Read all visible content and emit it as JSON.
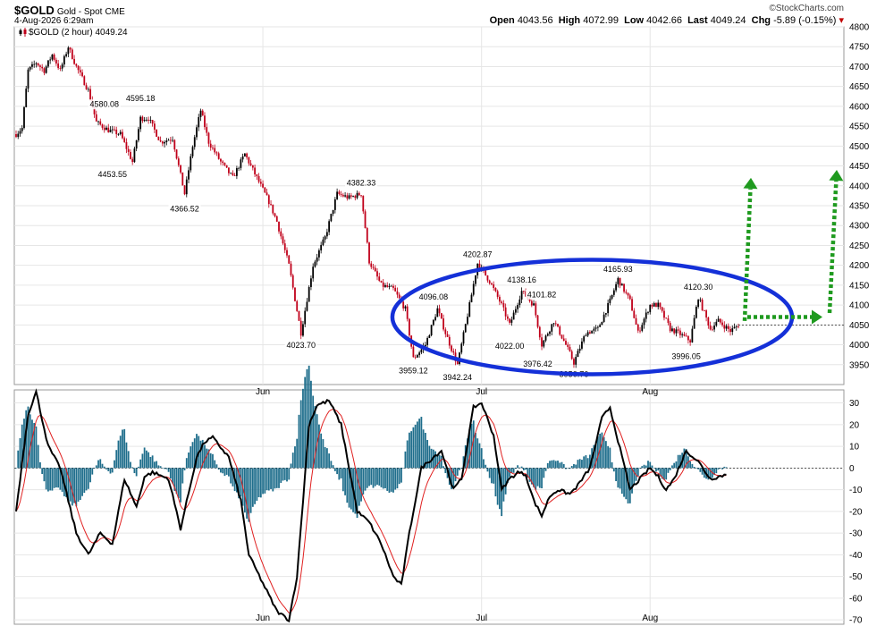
{
  "header": {
    "symbol": "$GOLD",
    "name": "Gold - Spot",
    "exchange": "CME",
    "timestamp": "4-Aug-2026 6:29am",
    "watermark": "©StockCharts.com",
    "open_label": "Open",
    "open": "4043.56",
    "high_label": "High",
    "high": "4072.99",
    "low_label": "Low",
    "low": "4042.66",
    "last_label": "Last",
    "last": "4049.24",
    "chg_label": "Chg",
    "chg": "-5.89 (-0.15%)"
  },
  "legend": {
    "price": "$GOLD (2 hour) 4049.24"
  },
  "colors": {
    "up": "#000000",
    "down": "#c0001a",
    "ellipse": "#1430d8",
    "arrow": "#1f9a1f",
    "histogram": "#1f6e8c",
    "signal": "#e02020",
    "grid": "#e6e6e6"
  },
  "chart_data": [
    {
      "type": "candlestick",
      "interval": "2 hour",
      "ylim": [
        3900,
        4800
      ],
      "yticks": [
        3950,
        4000,
        4050,
        4100,
        4150,
        4200,
        4250,
        4300,
        4350,
        4400,
        4450,
        4500,
        4550,
        4600,
        4650,
        4700,
        4750,
        4800
      ],
      "xticks": [
        "Jun",
        "Jul",
        "Aug"
      ],
      "last_price": 4049.24,
      "anchors": [
        [
          0,
          4530
        ],
        [
          3,
          4545
        ],
        [
          6,
          4690
        ],
        [
          10,
          4710
        ],
        [
          14,
          4690
        ],
        [
          18,
          4730
        ],
        [
          22,
          4690
        ],
        [
          26,
          4750
        ],
        [
          30,
          4700
        ],
        [
          36,
          4640
        ],
        [
          40,
          4560
        ],
        [
          46,
          4540
        ],
        [
          52,
          4530
        ],
        [
          58,
          4460
        ],
        [
          62,
          4570
        ],
        [
          66,
          4570
        ],
        [
          72,
          4510
        ],
        [
          78,
          4520
        ],
        [
          84,
          4380
        ],
        [
          88,
          4500
        ],
        [
          92,
          4590
        ],
        [
          96,
          4510
        ],
        [
          102,
          4460
        ],
        [
          108,
          4420
        ],
        [
          114,
          4480
        ],
        [
          120,
          4420
        ],
        [
          126,
          4360
        ],
        [
          130,
          4310
        ],
        [
          136,
          4200
        ],
        [
          142,
          4030
        ],
        [
          148,
          4200
        ],
        [
          154,
          4270
        ],
        [
          160,
          4380
        ],
        [
          166,
          4370
        ],
        [
          172,
          4380
        ],
        [
          176,
          4210
        ],
        [
          182,
          4150
        ],
        [
          188,
          4140
        ],
        [
          194,
          4090
        ],
        [
          198,
          3965
        ],
        [
          204,
          4000
        ],
        [
          210,
          4090
        ],
        [
          214,
          4030
        ],
        [
          220,
          3950
        ],
        [
          226,
          4100
        ],
        [
          230,
          4205
        ],
        [
          236,
          4160
        ],
        [
          242,
          4100
        ],
        [
          246,
          4050
        ],
        [
          252,
          4135
        ],
        [
          258,
          4100
        ],
        [
          262,
          4000
        ],
        [
          268,
          4060
        ],
        [
          274,
          4000
        ],
        [
          278,
          3955
        ],
        [
          284,
          4030
        ],
        [
          290,
          4040
        ],
        [
          296,
          4110
        ],
        [
          300,
          4165
        ],
        [
          306,
          4110
        ],
        [
          310,
          4030
        ],
        [
          316,
          4100
        ],
        [
          320,
          4100
        ],
        [
          326,
          4040
        ],
        [
          330,
          4030
        ],
        [
          336,
          4010
        ],
        [
          340,
          4120
        ],
        [
          346,
          4040
        ],
        [
          350,
          4060
        ],
        [
          356,
          4035
        ],
        [
          360,
          4049
        ]
      ],
      "annotations": [
        {
          "i": 44,
          "value": 4580.08,
          "label": "4580.08",
          "pos": "above"
        },
        {
          "i": 48,
          "value": 4453.55,
          "label": "4453.55",
          "pos": "below"
        },
        {
          "i": 62,
          "value": 4595.18,
          "label": "4595.18",
          "pos": "above"
        },
        {
          "i": 84,
          "value": 4366.52,
          "label": "4366.52",
          "pos": "below"
        },
        {
          "i": 142,
          "value": 4023.7,
          "label": "4023.70",
          "pos": "below"
        },
        {
          "i": 172,
          "value": 4382.33,
          "label": "4382.33",
          "pos": "above"
        },
        {
          "i": 198,
          "value": 3959.12,
          "label": "3959.12",
          "pos": "below"
        },
        {
          "i": 208,
          "value": 4096.08,
          "label": "4096.08",
          "pos": "above"
        },
        {
          "i": 220,
          "value": 3942.24,
          "label": "3942.24",
          "pos": "below"
        },
        {
          "i": 230,
          "value": 4202.87,
          "label": "4202.87",
          "pos": "above"
        },
        {
          "i": 252,
          "value": 4138.16,
          "label": "4138.16",
          "pos": "above"
        },
        {
          "i": 246,
          "value": 4022.0,
          "label": "4022.00",
          "pos": "below"
        },
        {
          "i": 262,
          "value": 4101.82,
          "label": "4101.82",
          "pos": "above"
        },
        {
          "i": 260,
          "value": 3976.42,
          "label": "3976.42",
          "pos": "below"
        },
        {
          "i": 278,
          "value": 3950.76,
          "label": "3950.76",
          "pos": "below"
        },
        {
          "i": 300,
          "value": 4165.93,
          "label": "4165.93",
          "pos": "above"
        },
        {
          "i": 340,
          "value": 4120.3,
          "label": "4120.30",
          "pos": "above"
        },
        {
          "i": 334,
          "value": 3996.05,
          "label": "3996.05",
          "pos": "below"
        }
      ]
    },
    {
      "type": "line",
      "indicator": "oscillator",
      "ylim": [
        -72,
        36
      ],
      "yticks": [
        30,
        20,
        10,
        0,
        -10,
        -20,
        -30,
        -40,
        -50,
        -60,
        -70
      ],
      "series_anchors": [
        [
          0,
          -20
        ],
        [
          6,
          25
        ],
        [
          10,
          35
        ],
        [
          16,
          10
        ],
        [
          22,
          0
        ],
        [
          30,
          -30
        ],
        [
          36,
          -40
        ],
        [
          42,
          -30
        ],
        [
          48,
          -35
        ],
        [
          54,
          -5
        ],
        [
          60,
          -18
        ],
        [
          64,
          -4
        ],
        [
          68,
          -2
        ],
        [
          76,
          -5
        ],
        [
          82,
          -28
        ],
        [
          90,
          5
        ],
        [
          94,
          12
        ],
        [
          98,
          14
        ],
        [
          106,
          5
        ],
        [
          112,
          -15
        ],
        [
          116,
          -40
        ],
        [
          124,
          -55
        ],
        [
          130,
          -66
        ],
        [
          136,
          -70
        ],
        [
          140,
          -50
        ],
        [
          146,
          20
        ],
        [
          150,
          29
        ],
        [
          156,
          31
        ],
        [
          162,
          20
        ],
        [
          170,
          -20
        ],
        [
          176,
          -25
        ],
        [
          182,
          -35
        ],
        [
          188,
          -50
        ],
        [
          192,
          -54
        ],
        [
          196,
          -30
        ],
        [
          202,
          0
        ],
        [
          208,
          5
        ],
        [
          212,
          8
        ],
        [
          218,
          -10
        ],
        [
          222,
          -5
        ],
        [
          228,
          28
        ],
        [
          232,
          30
        ],
        [
          238,
          15
        ],
        [
          242,
          -10
        ],
        [
          246,
          -5
        ],
        [
          250,
          -2
        ],
        [
          254,
          -3
        ],
        [
          258,
          -15
        ],
        [
          262,
          -22
        ],
        [
          266,
          -13
        ],
        [
          270,
          -10
        ],
        [
          276,
          -12
        ],
        [
          280,
          -8
        ],
        [
          286,
          0
        ],
        [
          292,
          23
        ],
        [
          296,
          28
        ],
        [
          302,
          5
        ],
        [
          306,
          -10
        ],
        [
          310,
          -6
        ],
        [
          316,
          0
        ],
        [
          320,
          -4
        ],
        [
          324,
          -10
        ],
        [
          328,
          -5
        ],
        [
          334,
          8
        ],
        [
          340,
          3
        ],
        [
          346,
          -5
        ],
        [
          350,
          -4
        ],
        [
          354,
          -3
        ]
      ]
    }
  ]
}
